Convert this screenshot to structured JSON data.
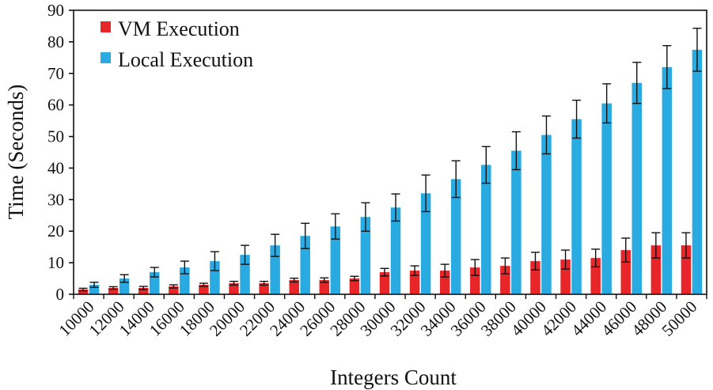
{
  "chart_data": {
    "type": "bar",
    "title": "",
    "xlabel": "Integers Count",
    "ylabel": "Time (Seconds)",
    "ylim": [
      0,
      90
    ],
    "yticks": [
      0,
      10,
      20,
      30,
      40,
      50,
      60,
      70,
      80,
      90
    ],
    "legend_position": "top-left",
    "grid": false,
    "error_bars": true,
    "categories": [
      "10000",
      "12000",
      "14000",
      "16000",
      "18000",
      "20000",
      "22000",
      "24000",
      "26000",
      "28000",
      "30000",
      "32000",
      "34000",
      "36000",
      "38000",
      "40000",
      "42000",
      "44000",
      "46000",
      "48000",
      "50000"
    ],
    "series": [
      {
        "name": "VM Execution",
        "color": "#e8262a",
        "values": [
          1.5,
          2.0,
          2.0,
          2.5,
          3.0,
          3.5,
          3.5,
          4.5,
          4.5,
          5.0,
          7.0,
          7.5,
          7.5,
          8.5,
          9.0,
          10.5,
          11.0,
          11.5,
          14.0,
          15.5,
          15.5
        ],
        "errors": [
          0.4,
          0.4,
          0.5,
          0.5,
          0.5,
          0.6,
          0.6,
          0.6,
          0.7,
          0.7,
          1.2,
          1.5,
          2.0,
          2.5,
          2.5,
          2.8,
          3.0,
          2.8,
          3.8,
          4.0,
          4.0
        ]
      },
      {
        "name": "Local Execution",
        "color": "#29abe2",
        "values": [
          3.0,
          5.0,
          7.0,
          8.5,
          10.5,
          12.5,
          15.5,
          18.5,
          21.5,
          24.5,
          27.5,
          32.0,
          36.5,
          41.0,
          45.5,
          50.5,
          55.5,
          60.5,
          67.0,
          72.0,
          77.5
        ],
        "errors": [
          0.8,
          1.2,
          1.5,
          2.0,
          3.0,
          3.0,
          3.5,
          4.0,
          4.0,
          4.5,
          4.3,
          5.8,
          5.8,
          5.8,
          6.0,
          6.0,
          6.0,
          6.2,
          6.5,
          6.8,
          6.8
        ]
      }
    ]
  }
}
